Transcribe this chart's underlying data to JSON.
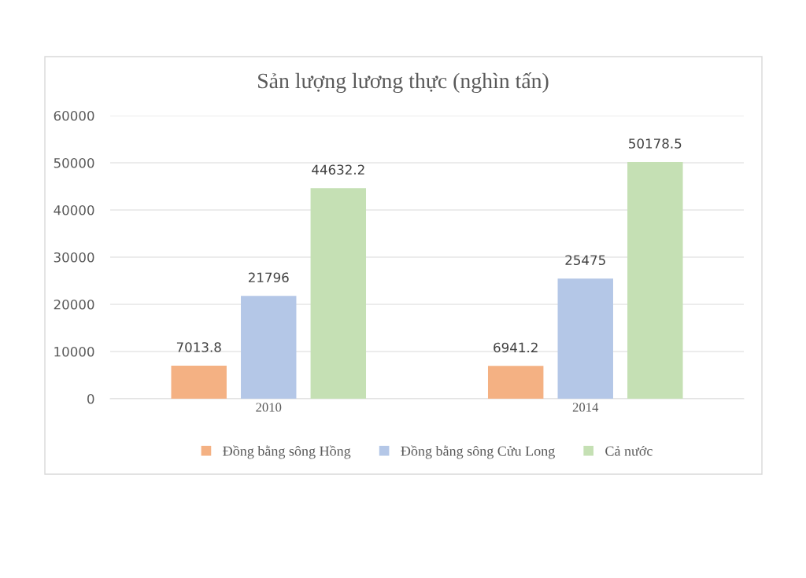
{
  "chart_data": {
    "type": "bar",
    "title": "Sản lượng lương thực (nghìn tấn)",
    "categories": [
      "2010",
      "2014"
    ],
    "series": [
      {
        "name": "Đồng bằng sông Hồng",
        "color": "#f4b183",
        "values": [
          7013.8,
          6941.2
        ]
      },
      {
        "name": "Đồng bằng sông Cửu Long",
        "color": "#b4c7e7",
        "values": [
          21796,
          25475
        ]
      },
      {
        "name": "Cả nước",
        "color": "#c5e0b4",
        "values": [
          44632.2,
          50178.5
        ]
      }
    ],
    "ylim": [
      0,
      60000
    ],
    "yticks": [
      0,
      10000,
      20000,
      30000,
      40000,
      50000,
      60000
    ],
    "grid": "y",
    "legend": "bottom",
    "data_labels": true
  }
}
